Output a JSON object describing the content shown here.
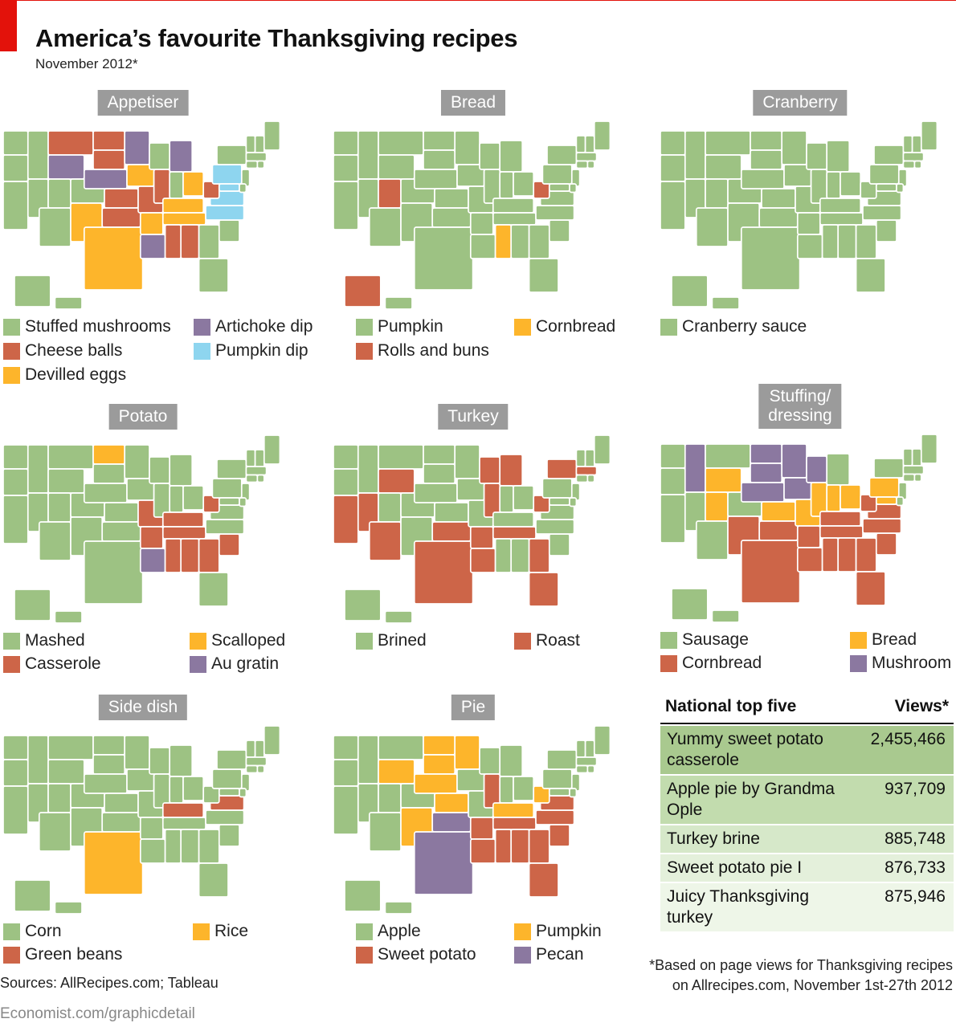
{
  "header": {
    "title": "America’s favourite Thanksgiving recipes",
    "subtitle": "November 2012*"
  },
  "colors": {
    "red_rule": "#e3120b",
    "green": "#9dc283",
    "red": "#cd6548",
    "orange": "#fdb52b",
    "purple": "#8b78a0",
    "blue": "#8ed5ef",
    "title_box": "#9b9b9b"
  },
  "panels": [
    {
      "title": "Appetiser",
      "legend": [
        {
          "label": "Stuffed mushrooms",
          "color": "#9dc283"
        },
        {
          "label": "Cheese balls",
          "color": "#cd6548"
        },
        {
          "label": "Devilled eggs",
          "color": "#fdb52b"
        },
        {
          "label": "Artichoke dip",
          "color": "#8b78a0"
        },
        {
          "label": "Pumpkin dip",
          "color": "#8ed5ef"
        }
      ],
      "states": {
        "MT": "red",
        "ND": "red",
        "SD": "red",
        "WY": "purple",
        "NE": "purple",
        "MN": "purple",
        "MI": "purple",
        "IA": "orange",
        "MO": "red",
        "KS": "red",
        "OK": "red",
        "TX": "orange",
        "NM": "orange",
        "AR": "orange",
        "LA": "purple",
        "MS": "red",
        "AL": "red",
        "TN": "orange",
        "KY": "orange",
        "OH": "orange",
        "WV": "red",
        "VA": "blue",
        "NC": "blue",
        "PA": "blue",
        "MD": "blue",
        "IL": "red"
      }
    },
    {
      "title": "Bread",
      "legend": [
        {
          "label": "Pumpkin",
          "color": "#9dc283"
        },
        {
          "label": "Rolls and buns",
          "color": "#cd6548"
        },
        {
          "label": "Cornbread",
          "color": "#fdb52b"
        }
      ],
      "states": {
        "UT": "red",
        "WV": "red",
        "AK": "red",
        "MS": "orange"
      }
    },
    {
      "title": "Cranberry",
      "legend": [
        {
          "label": "Cranberry sauce",
          "color": "#9dc283"
        }
      ],
      "states": {}
    },
    {
      "title": "Potato",
      "legend": [
        {
          "label": "Mashed",
          "color": "#9dc283"
        },
        {
          "label": "Casserole",
          "color": "#cd6548"
        },
        {
          "label": "Scalloped",
          "color": "#fdb52b"
        },
        {
          "label": "Au gratin",
          "color": "#8b78a0"
        }
      ],
      "states": {
        "ND": "orange",
        "MO": "red",
        "AR": "red",
        "LA": "purple",
        "MS": "red",
        "AL": "red",
        "GA": "red",
        "SC": "red",
        "TN": "red",
        "KY": "red",
        "WV": "red"
      }
    },
    {
      "title": "Turkey",
      "legend": [
        {
          "label": "Brined",
          "color": "#9dc283"
        },
        {
          "label": "Roast",
          "color": "#cd6548"
        }
      ],
      "states": {
        "CA": "red",
        "NV": "red",
        "AZ": "red",
        "WY": "red",
        "TX": "red",
        "OK": "red",
        "LA": "red",
        "AR": "red",
        "TN": "red",
        "GA": "red",
        "FL": "red",
        "WI": "red",
        "MI": "red",
        "IL": "red",
        "NY": "red",
        "WV": "red",
        "MA": "red"
      }
    },
    {
      "title": "Stuffing/ dressing",
      "title_lines": [
        "Stuffing/",
        "dressing"
      ],
      "legend": [
        {
          "label": "Sausage",
          "color": "#9dc283"
        },
        {
          "label": "Cornbread",
          "color": "#cd6548"
        },
        {
          "label": "Bread",
          "color": "#fdb52b"
        },
        {
          "label": "Mushroom",
          "color": "#8b78a0"
        }
      ],
      "states": {
        "ID": "purple",
        "ND": "purple",
        "SD": "purple",
        "MN": "purple",
        "WI": "purple",
        "IA": "purple",
        "NE": "purple",
        "WY": "orange",
        "UT": "orange",
        "KS": "orange",
        "MO": "orange",
        "IL": "orange",
        "IN": "orange",
        "OH": "orange",
        "PA": "orange",
        "MD": "orange",
        "NM": "red",
        "TX": "red",
        "OK": "red",
        "AR": "red",
        "LA": "red",
        "MS": "red",
        "AL": "red",
        "GA": "red",
        "FL": "red",
        "SC": "red",
        "NC": "red",
        "TN": "red",
        "KY": "red",
        "WV": "red",
        "VA": "red"
      }
    },
    {
      "title": "Side dish",
      "legend": [
        {
          "label": "Corn",
          "color": "#9dc283"
        },
        {
          "label": "Green beans",
          "color": "#cd6548"
        },
        {
          "label": "Rice",
          "color": "#fdb52b"
        }
      ],
      "states": {
        "TX": "orange",
        "KY": "red",
        "VA": "red"
      }
    },
    {
      "title": "Pie",
      "legend": [
        {
          "label": "Apple",
          "color": "#9dc283"
        },
        {
          "label": "Sweet potato",
          "color": "#cd6548"
        },
        {
          "label": "Pumpkin",
          "color": "#fdb52b"
        },
        {
          "label": "Pecan",
          "color": "#8b78a0"
        }
      ],
      "states": {
        "WY": "orange",
        "ND": "orange",
        "SD": "orange",
        "NE": "orange",
        "KS": "orange",
        "MN": "orange",
        "NM": "orange",
        "KY": "orange",
        "WV": "orange",
        "TX": "purple",
        "OK": "purple",
        "IL": "red",
        "AR": "red",
        "LA": "red",
        "MS": "red",
        "AL": "red",
        "GA": "red",
        "SC": "red",
        "NC": "red",
        "TN": "red",
        "VA": "red",
        "FL": "red"
      }
    }
  ],
  "table": {
    "header_left": "National top five",
    "header_right": "Views*",
    "rows": [
      {
        "name": "Yummy sweet potato casserole",
        "views": "2,455,466",
        "shade": "#a9c98f"
      },
      {
        "name": "Apple pie by Grandma Ople",
        "views": "937,709",
        "shade": "#c2dcae"
      },
      {
        "name": "Turkey brine",
        "views": "885,748",
        "shade": "#d6e8c9"
      },
      {
        "name": "Sweet potato pie I",
        "views": "876,733",
        "shade": "#e4f0db"
      },
      {
        "name": "Juicy Thanksgiving turkey",
        "views": "875,946",
        "shade": "#eef6e8"
      }
    ]
  },
  "footnote_line1": "*Based on page views for Thanksgiving recipes",
  "footnote_line2": "on Allrecipes.com, November 1st-27th 2012",
  "sources": "Sources:  AllRecipes.com; Tableau",
  "credit": "Economist.com/graphicdetail"
}
